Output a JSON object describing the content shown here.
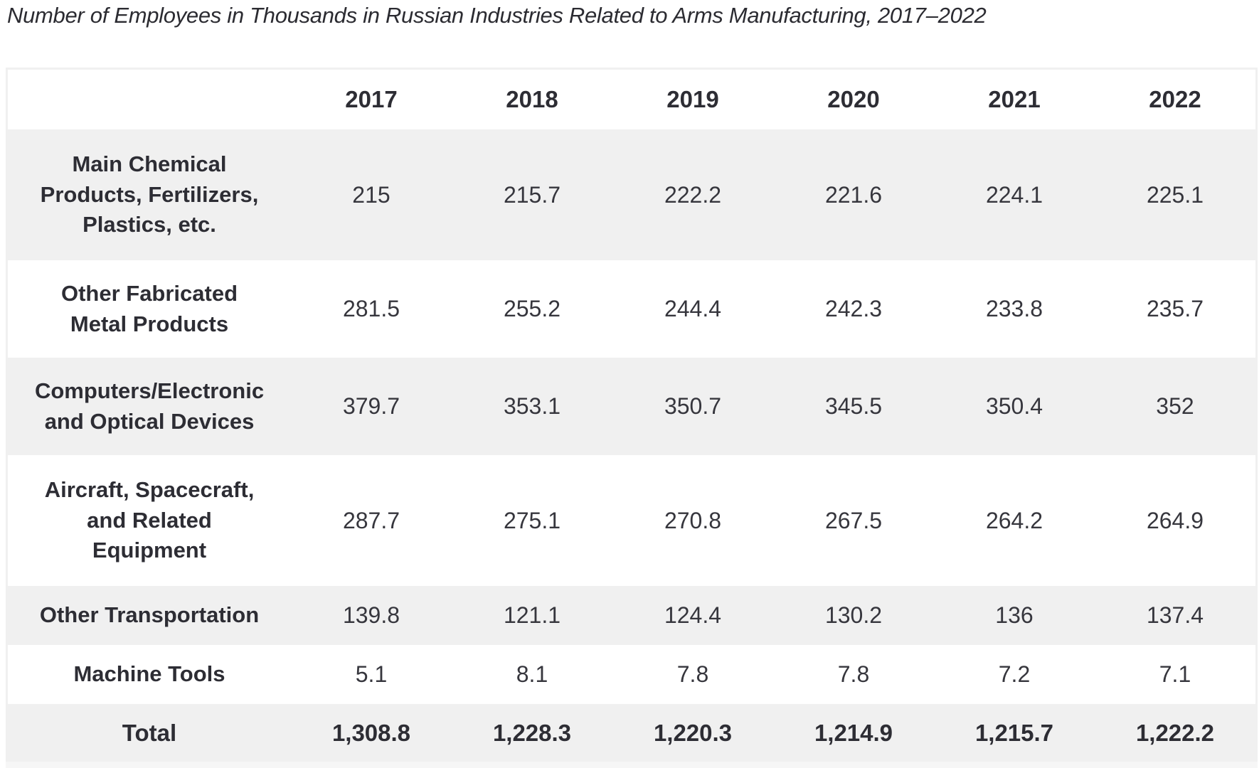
{
  "title": "Number of Employees in Thousands in Russian Industries Related to Arms Manufacturing, 2017–2022",
  "colors": {
    "stripe_row": "#f0f0f0",
    "text": "#36363d",
    "bold_text": "#2d2d34",
    "background": "#ffffff"
  },
  "chart_data": {
    "type": "table",
    "title": "Number of Employees in Thousands in Russian Industries Related to Arms Manufacturing, 2017–2022",
    "unit": "thousands of employees",
    "columns": [
      "2017",
      "2018",
      "2019",
      "2020",
      "2021",
      "2022"
    ],
    "rows": [
      {
        "label": "Main Chemical\nProducts, Fertilizers,\nPlastics, etc.",
        "values": [
          "215",
          "215.7",
          "222.2",
          "221.6",
          "224.1",
          "225.1"
        ]
      },
      {
        "label": "Other Fabricated\nMetal Products",
        "values": [
          "281.5",
          "255.2",
          "244.4",
          "242.3",
          "233.8",
          "235.7"
        ]
      },
      {
        "label": "Computers/Electronic\nand Optical Devices",
        "values": [
          "379.7",
          "353.1",
          "350.7",
          "345.5",
          "350.4",
          "352"
        ]
      },
      {
        "label": "Aircraft, Spacecraft,\nand Related\nEquipment",
        "values": [
          "287.7",
          "275.1",
          "270.8",
          "267.5",
          "264.2",
          "264.9"
        ]
      },
      {
        "label": "Other Transportation",
        "values": [
          "139.8",
          "121.1",
          "124.4",
          "130.2",
          "136",
          "137.4"
        ]
      },
      {
        "label": "Machine Tools",
        "values": [
          "5.1",
          "8.1",
          "7.8",
          "7.8",
          "7.2",
          "7.1"
        ]
      }
    ],
    "total_row": {
      "label": "Total",
      "values": [
        "1,308.8",
        "1,228.3",
        "1,220.3",
        "1,214.9",
        "1,215.7",
        "1,222.2"
      ]
    }
  }
}
